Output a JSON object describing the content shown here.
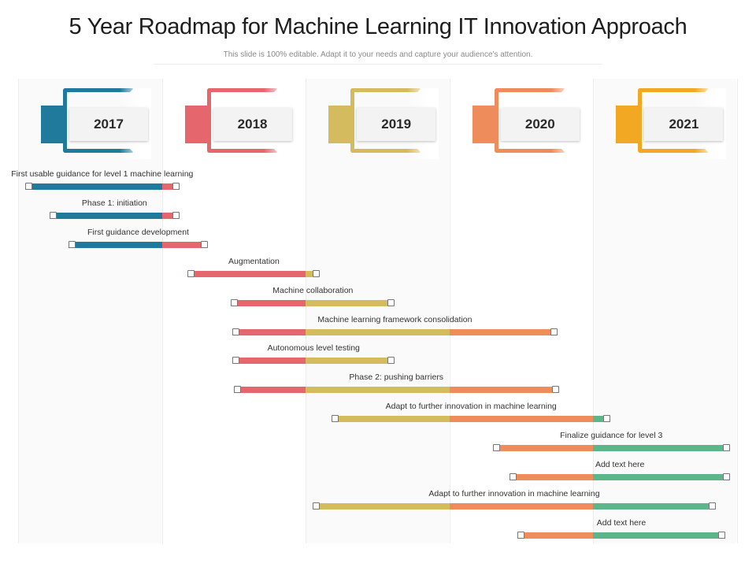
{
  "title": "5 Year Roadmap for Machine Learning IT Innovation Approach",
  "subtitle": "This slide is 100% editable. Adapt it to your needs and capture your audience's attention.",
  "colors": {
    "y2017": "#1f7a9c",
    "y2018": "#e5666d",
    "y2019": "#d4bb5e",
    "y2020": "#ee8c5c",
    "y2021": "#5db68a",
    "header2021": "#f3a823"
  },
  "years": [
    {
      "label": "2017",
      "color": "#1f7a9c"
    },
    {
      "label": "2018",
      "color": "#e5666d"
    },
    {
      "label": "2019",
      "color": "#d4bb5e"
    },
    {
      "label": "2020",
      "color": "#ee8c5c"
    },
    {
      "label": "2021",
      "color": "#f3a823"
    }
  ],
  "tasks": [
    {
      "label": "First usable guidance for level 1 machine  learning",
      "start": 2017.05,
      "end": 2018.12
    },
    {
      "label": "Phase 1: initiation",
      "start": 2017.22,
      "end": 2018.12
    },
    {
      "label": "First guidance development",
      "start": 2017.35,
      "end": 2018.32
    },
    {
      "label": "Augmentation",
      "start": 2018.18,
      "end": 2019.1
    },
    {
      "label": "Machine collaboration",
      "start": 2018.48,
      "end": 2019.62
    },
    {
      "label": "Machine learning framework consolidation",
      "start": 2018.49,
      "end": 2020.75
    },
    {
      "label": "Autonomous  level testing",
      "start": 2018.49,
      "end": 2019.62
    },
    {
      "label": "Phase 2: pushing barriers",
      "start": 2018.5,
      "end": 2020.76
    },
    {
      "label": "Adapt to further  innovation in machine learning",
      "start": 2019.18,
      "end": 2021.12
    },
    {
      "label": "Finalize guidance for level 3",
      "start": 2020.3,
      "end": 2021.95
    },
    {
      "label": "Add text here",
      "start": 2020.42,
      "end": 2021.95
    },
    {
      "label": "Adapt to further  innovation in machine learning",
      "start": 2019.05,
      "end": 2021.85
    },
    {
      "label": "Add text here",
      "start": 2020.47,
      "end": 2021.92
    }
  ]
}
